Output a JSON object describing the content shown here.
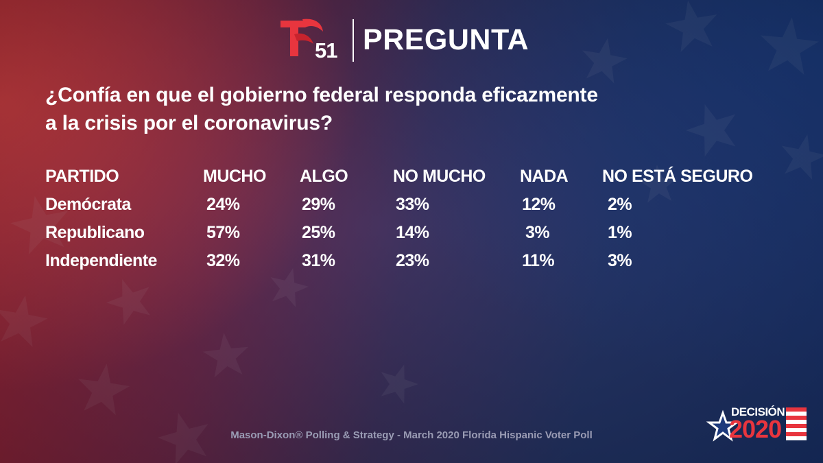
{
  "header": {
    "station_number": "51",
    "title": "PREGUNTA"
  },
  "question": {
    "line1": "¿Confía en que el gobierno federal responda eficazmente",
    "line2": "a la crisis por el coronavirus?"
  },
  "table": {
    "headers": [
      "PARTIDO",
      "MUCHO",
      "ALGO",
      "NO MUCHO",
      "NADA",
      "NO ESTÁ SEGURO"
    ],
    "rows": [
      {
        "party": "Demócrata",
        "mucho": "24%",
        "algo": "29%",
        "no_mucho": "33%",
        "nada": "12%",
        "no_seguro": "2%"
      },
      {
        "party": "Republicano",
        "mucho": "57%",
        "algo": "25%",
        "no_mucho": "14%",
        "nada": "3%",
        "no_seguro": "1%"
      },
      {
        "party": "Independiente",
        "mucho": "32%",
        "algo": "31%",
        "no_mucho": "23%",
        "nada": "11%",
        "no_seguro": "3%"
      }
    ]
  },
  "source": "Mason-Dixon® Polling & Strategy - March 2020 Florida Hispanic Voter Poll",
  "badge": {
    "label": "DECISIÓN",
    "year": "2020"
  },
  "colors": {
    "brand_red": "#e8353e",
    "text": "#ffffff",
    "source_text": "#9a9cb4"
  },
  "icons": {
    "logo": "telemundo-logo-icon",
    "badge_star": "star-icon",
    "badge_flag": "flag-stripes-icon"
  }
}
